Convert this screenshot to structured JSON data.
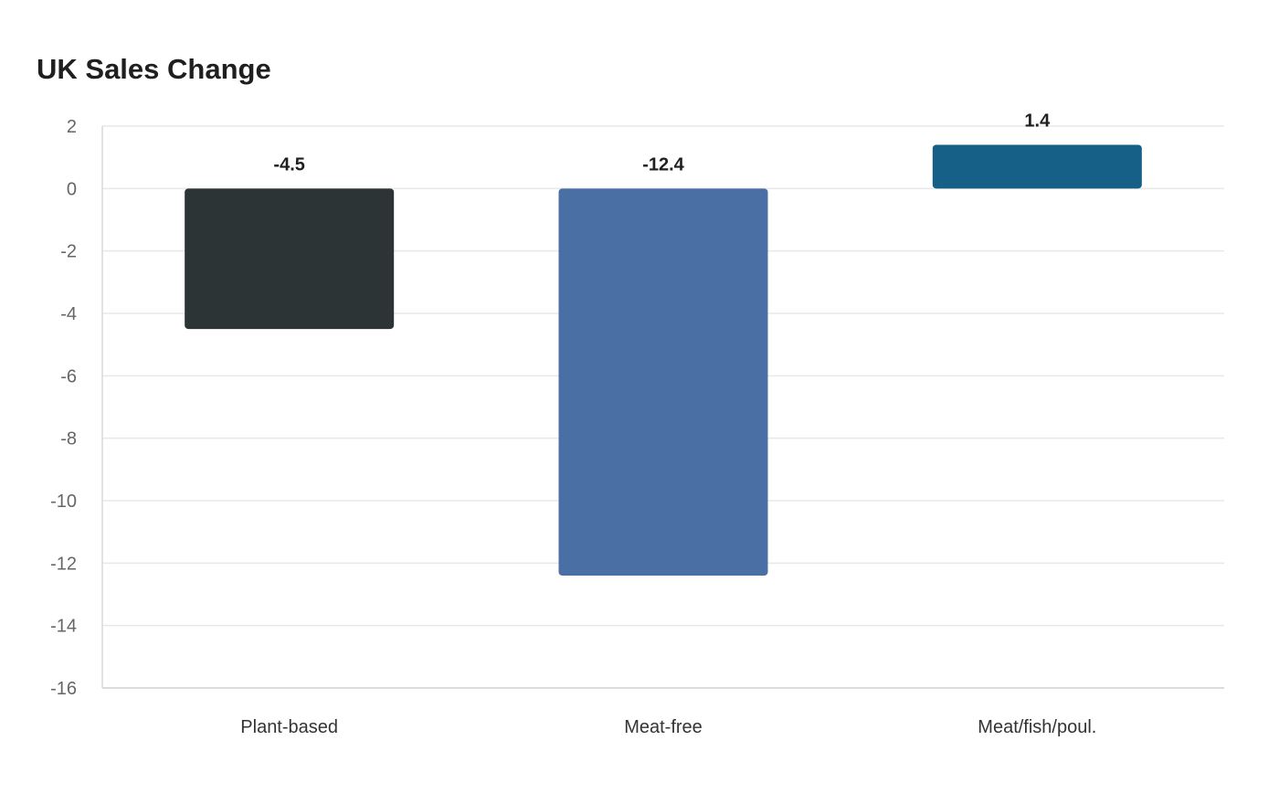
{
  "chart_data": {
    "type": "bar",
    "title": "UK Sales Change",
    "xlabel": "",
    "ylabel": "",
    "categories": [
      "Plant-based",
      "Meat-free",
      "Meat/fish/poul."
    ],
    "values": [
      -4.5,
      -12.4,
      1.4
    ],
    "value_labels": [
      "-4.5",
      "-12.4",
      "1.4"
    ],
    "colors": [
      "#2d3436",
      "#4a6fa5",
      "#166088"
    ],
    "ylim": [
      -16,
      2
    ],
    "yticks": [
      2,
      0,
      -2,
      -4,
      -6,
      -8,
      -10,
      -12,
      -14,
      -16
    ],
    "grid": true,
    "legend": "none"
  }
}
